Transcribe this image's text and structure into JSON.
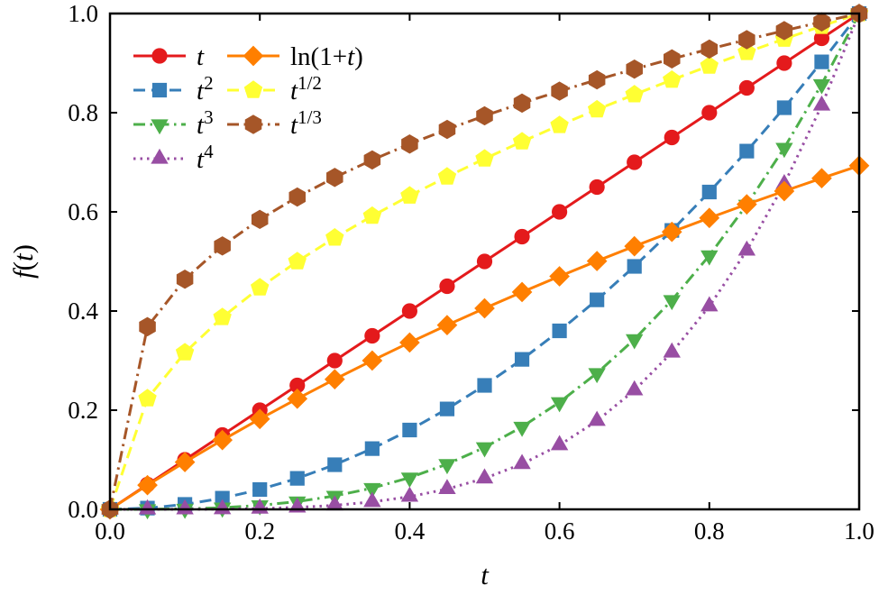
{
  "chart_data": {
    "type": "line",
    "title": "",
    "xlabel": "t",
    "ylabel": "f(t)",
    "xlabel_parts": [
      {
        "text": "t",
        "italic": true
      }
    ],
    "ylabel_parts": [
      {
        "text": "f",
        "italic": true
      },
      {
        "text": "(",
        "italic": false
      },
      {
        "text": "t",
        "italic": true
      },
      {
        "text": ")",
        "italic": false
      }
    ],
    "xlim": [
      0,
      1
    ],
    "ylim": [
      0,
      1
    ],
    "xticks": [
      0,
      0.2,
      0.4,
      0.6,
      0.8,
      1.0
    ],
    "yticks": [
      0,
      0.2,
      0.4,
      0.6,
      0.8,
      1.0
    ],
    "xtick_labels": [
      "0.0",
      "0.2",
      "0.4",
      "0.6",
      "0.8",
      "1.0"
    ],
    "ytick_labels": [
      "0.0",
      "0.2",
      "0.4",
      "0.6",
      "0.8",
      "1.0"
    ],
    "grid": false,
    "legend_position": "upper-left",
    "frame_color": "#000000",
    "x": [
      0,
      0.05,
      0.1,
      0.15,
      0.2,
      0.25,
      0.3,
      0.35,
      0.4,
      0.45,
      0.5,
      0.55,
      0.6,
      0.65,
      0.7,
      0.75,
      0.8,
      0.85,
      0.9,
      0.95,
      1
    ],
    "series": [
      {
        "name": "t",
        "label_parts": [
          {
            "text": "t",
            "italic": true
          }
        ],
        "color": "#e41a1c",
        "dash": "solid",
        "marker": "circle",
        "legend_col": 0,
        "legend_row": 0,
        "values": [
          0,
          0.05,
          0.1,
          0.15,
          0.2,
          0.25,
          0.3,
          0.35,
          0.4,
          0.45,
          0.5,
          0.55,
          0.6,
          0.65,
          0.7,
          0.75,
          0.8,
          0.85,
          0.9,
          0.95,
          1
        ]
      },
      {
        "name": "t^2",
        "label_parts": [
          {
            "text": "t",
            "italic": true
          },
          {
            "text": "2",
            "italic": false,
            "sup": true
          }
        ],
        "color": "#377eb8",
        "dash": "dashed",
        "marker": "square",
        "legend_col": 0,
        "legend_row": 1,
        "values": [
          0,
          0.0025,
          0.01,
          0.0225,
          0.04,
          0.0625,
          0.09,
          0.1225,
          0.16,
          0.2025,
          0.25,
          0.3025,
          0.36,
          0.4225,
          0.49,
          0.5625,
          0.64,
          0.7225,
          0.81,
          0.9025,
          1
        ]
      },
      {
        "name": "t^3",
        "label_parts": [
          {
            "text": "t",
            "italic": true
          },
          {
            "text": "3",
            "italic": false,
            "sup": true
          }
        ],
        "color": "#4daf4a",
        "dash": "dashdot",
        "marker": "triangle-down",
        "legend_col": 0,
        "legend_row": 2,
        "values": [
          0,
          0.00013,
          0.001,
          0.00338,
          0.008,
          0.01563,
          0.027,
          0.04288,
          0.064,
          0.09113,
          0.125,
          0.16638,
          0.216,
          0.27463,
          0.343,
          0.42188,
          0.512,
          0.61413,
          0.729,
          0.85738,
          1
        ]
      },
      {
        "name": "t^4",
        "label_parts": [
          {
            "text": "t",
            "italic": true
          },
          {
            "text": "4",
            "italic": false,
            "sup": true
          }
        ],
        "color": "#984ea3",
        "dash": "dotted",
        "marker": "triangle-up",
        "legend_col": 0,
        "legend_row": 3,
        "values": [
          0,
          1e-05,
          0.0001,
          0.00051,
          0.0016,
          0.00391,
          0.0081,
          0.01501,
          0.0256,
          0.04101,
          0.0625,
          0.09151,
          0.1296,
          0.17851,
          0.2401,
          0.31641,
          0.4096,
          0.52201,
          0.6561,
          0.81451,
          1
        ]
      },
      {
        "name": "ln(1+t)",
        "label_parts": [
          {
            "text": "ln(1+",
            "italic": false
          },
          {
            "text": "t",
            "italic": true
          },
          {
            "text": ")",
            "italic": false
          }
        ],
        "color": "#ff7f00",
        "dash": "solid",
        "marker": "diamond",
        "legend_col": 1,
        "legend_row": 0,
        "values": [
          0,
          0.04879,
          0.09531,
          0.13976,
          0.18232,
          0.22314,
          0.26236,
          0.3001,
          0.33647,
          0.37156,
          0.40546,
          0.43825,
          0.47,
          0.50078,
          0.53063,
          0.55962,
          0.58779,
          0.61519,
          0.64185,
          0.66783,
          0.69315
        ]
      },
      {
        "name": "t^(1/2)",
        "label_parts": [
          {
            "text": "t",
            "italic": true
          },
          {
            "text": "1/2",
            "italic": false,
            "sup": true
          }
        ],
        "color": "#ffff33",
        "dash": "dashed",
        "marker": "pentagon",
        "legend_col": 1,
        "legend_row": 1,
        "values": [
          0,
          0.22361,
          0.31623,
          0.3873,
          0.44721,
          0.5,
          0.54772,
          0.59161,
          0.63246,
          0.67082,
          0.70711,
          0.74162,
          0.7746,
          0.80623,
          0.83666,
          0.86603,
          0.89443,
          0.92195,
          0.94868,
          0.97468,
          1
        ]
      },
      {
        "name": "t^(1/3)",
        "label_parts": [
          {
            "text": "t",
            "italic": true
          },
          {
            "text": "1/3",
            "italic": false,
            "sup": true
          }
        ],
        "color": "#a65628",
        "dash": "dashdot",
        "marker": "hexagon",
        "legend_col": 1,
        "legend_row": 2,
        "values": [
          0,
          0.3684,
          0.46416,
          0.53133,
          0.5848,
          0.62996,
          0.66943,
          0.70473,
          0.73681,
          0.76631,
          0.7937,
          0.81932,
          0.84343,
          0.86624,
          0.8879,
          0.90856,
          0.92832,
          0.94727,
          0.96549,
          0.98305,
          1
        ]
      }
    ]
  }
}
